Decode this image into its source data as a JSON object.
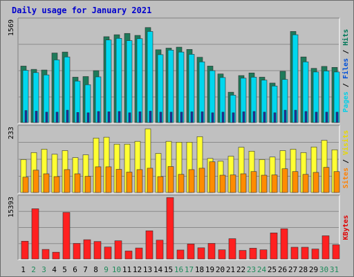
{
  "chart_data": {
    "type": "bar",
    "title": "Daily usage for January 2021",
    "categories": [
      "1",
      "2",
      "3",
      "4",
      "5",
      "6",
      "7",
      "8",
      "9",
      "10",
      "11",
      "12",
      "13",
      "14",
      "15",
      "16",
      "17",
      "18",
      "19",
      "20",
      "21",
      "22",
      "23",
      "24",
      "25",
      "26",
      "27",
      "28",
      "29",
      "30",
      "31"
    ],
    "weekend_days": [
      "2",
      "3",
      "9",
      "10",
      "16",
      "17",
      "23",
      "24",
      "30",
      "31"
    ],
    "panels": [
      {
        "id": "hits",
        "max_label": "1569",
        "ylim": [
          0,
          1569
        ],
        "right_labels": [
          "Pages",
          "Files",
          "Hits"
        ],
        "right_colors": [
          "#00d0e8",
          "#0050d8",
          "#007858"
        ],
        "series": [
          {
            "name": "Hits",
            "color": "#1e7a5a",
            "values": [
              865,
              815,
              805,
              1065,
              1080,
              695,
              705,
              795,
              1315,
              1345,
              1365,
              1335,
              1455,
              1115,
              1140,
              1155,
              1120,
              1000,
              865,
              745,
              465,
              720,
              760,
              695,
              605,
              785,
              1395,
              1005,
              830,
              860,
              845
            ]
          },
          {
            "name": "Files",
            "color": "#00d7ee",
            "values": [
              800,
              765,
              730,
              960,
              1005,
              635,
              580,
              700,
              1265,
              1290,
              1255,
              1285,
              1395,
              1040,
              1110,
              1080,
              1045,
              930,
              795,
              690,
              420,
              680,
              695,
              650,
              560,
              660,
              1345,
              930,
              775,
              790,
              775
            ]
          },
          {
            "name": "Pages",
            "color": "#1c2ea0",
            "values": [
              185,
              175,
              160,
              160,
              190,
              155,
              150,
              170,
              165,
              170,
              150,
              165,
              175,
              160,
              160,
              160,
              165,
              165,
              150,
              160,
              150,
              165,
              170,
              160,
              150,
              190,
              190,
              170,
              160,
              160,
              160
            ]
          }
        ]
      },
      {
        "id": "visits",
        "max_label": "233",
        "ylim": [
          0,
          233
        ],
        "right_labels": [
          "Sites",
          "Visits"
        ],
        "right_colors": [
          "#ff8000",
          "#e8d800"
        ],
        "series": [
          {
            "name": "Visits",
            "color": "#ffff33",
            "values": [
              118,
              143,
              155,
              137,
              150,
              125,
              135,
              195,
              198,
              173,
              173,
              183,
              228,
              140,
              183,
              180,
              180,
              200,
              122,
              112,
              130,
              162,
              148,
              118,
              127,
              150,
              155,
              143,
              163,
              187,
              153
            ]
          },
          {
            "name": "Sites",
            "color": "#ff8c00",
            "values": [
              55,
              80,
              67,
              57,
              82,
              67,
              58,
              92,
              92,
              83,
              73,
              82,
              87,
              57,
              93,
              65,
              82,
              87,
              110,
              62,
              63,
              67,
              75,
              62,
              63,
              85,
              75,
              65,
              72,
              90,
              75
            ]
          }
        ]
      },
      {
        "id": "kbytes",
        "max_label": "15393",
        "ylim": [
          0,
          15393
        ],
        "right_labels": [
          "KBytes"
        ],
        "right_colors": [
          "#e00000"
        ],
        "series": [
          {
            "name": "KBytes",
            "color": "#ff2020",
            "values": [
              4450,
              12550,
              2400,
              1700,
              11650,
              3900,
              4820,
              4380,
              3000,
              4550,
              2000,
              2750,
              7050,
              4710,
              15350,
              2250,
              3750,
              2800,
              3900,
              2300,
              5080,
              2150,
              2700,
              2300,
              6520,
              7550,
              2940,
              2940,
              2500,
              5800,
              3550
            ]
          }
        ]
      }
    ]
  }
}
